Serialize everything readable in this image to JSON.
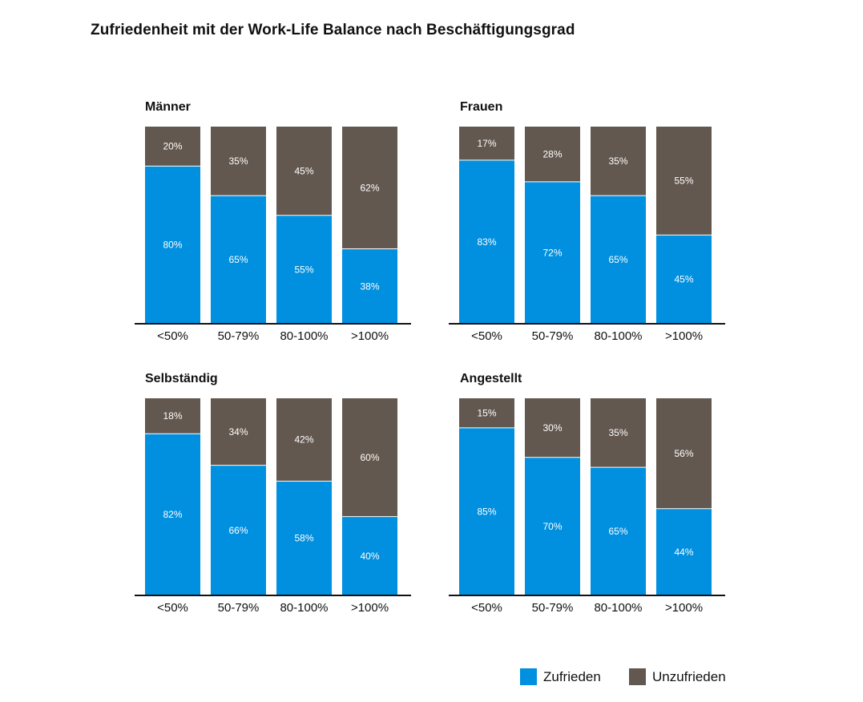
{
  "chart_data": {
    "type": "bar",
    "title": "Zufriedenheit mit der Work-Life Balance nach Beschäftigungsgrad",
    "stacked": true,
    "categories": [
      "<50%",
      "50-79%",
      "80-100%",
      ">100%"
    ],
    "ylim": [
      0,
      100
    ],
    "colors": {
      "Zufrieden": "#0090df",
      "Unzufrieden": "#635850"
    },
    "legend": {
      "position": "bottom-right",
      "items": [
        "Zufrieden",
        "Unzufrieden"
      ]
    },
    "panels": [
      {
        "title": "Männer",
        "series": [
          {
            "name": "Zufrieden",
            "values": [
              80,
              65,
              55,
              38
            ],
            "labels": [
              "80%",
              "65%",
              "55%",
              "38%"
            ]
          },
          {
            "name": "Unzufrieden",
            "values": [
              20,
              35,
              45,
              62
            ],
            "labels": [
              "20%",
              "35%",
              "45%",
              "62%"
            ]
          }
        ]
      },
      {
        "title": "Frauen",
        "series": [
          {
            "name": "Zufrieden",
            "values": [
              83,
              72,
              65,
              45
            ],
            "labels": [
              "83%",
              "72%",
              "65%",
              "45%"
            ]
          },
          {
            "name": "Unzufrieden",
            "values": [
              17,
              28,
              35,
              55
            ],
            "labels": [
              "17%",
              "28%",
              "35%",
              "55%"
            ]
          }
        ]
      },
      {
        "title": "Selbständig",
        "series": [
          {
            "name": "Zufrieden",
            "values": [
              82,
              66,
              58,
              40
            ],
            "labels": [
              "82%",
              "66%",
              "58%",
              "40%"
            ]
          },
          {
            "name": "Unzufrieden",
            "values": [
              18,
              34,
              42,
              60
            ],
            "labels": [
              "18%",
              "34%",
              "42%",
              "60%"
            ]
          }
        ]
      },
      {
        "title": "Angestellt",
        "series": [
          {
            "name": "Zufrieden",
            "values": [
              85,
              70,
              65,
              44
            ],
            "labels": [
              "85%",
              "70%",
              "65%",
              "44%"
            ]
          },
          {
            "name": "Unzufrieden",
            "values": [
              15,
              30,
              35,
              56
            ],
            "labels": [
              "15%",
              "30%",
              "35%",
              "56%"
            ]
          }
        ]
      }
    ]
  }
}
